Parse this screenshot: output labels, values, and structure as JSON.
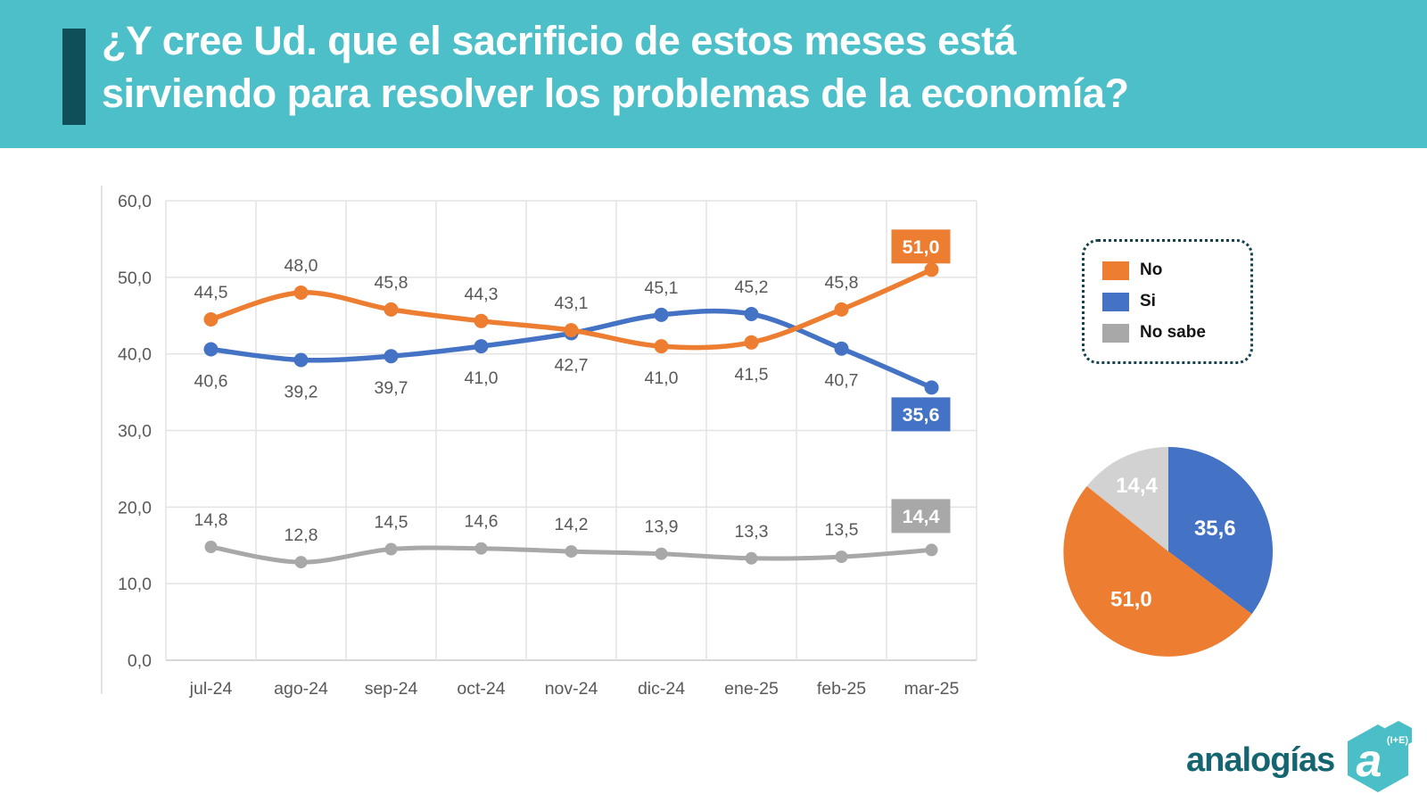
{
  "header": {
    "title_line1": "¿Y cree Ud. que el sacrificio de estos meses está",
    "title_line2": "sirviendo para resolver los problemas de la economía?"
  },
  "colors": {
    "header_bg": "#4CBFC8",
    "header_accent": "#0F4F59",
    "no_orange": "#ED7D31",
    "si_blue": "#4472C4",
    "no_sabe_gray": "#A8A8A8",
    "pie_gray": "#D2D2D2",
    "label_text": "#595959",
    "grid": "#E3E3E3"
  },
  "legend": {
    "items": [
      {
        "label": "No",
        "color": "#ED7D31"
      },
      {
        "label": "Si",
        "color": "#4472C4"
      },
      {
        "label": "No sabe",
        "color": "#A8A8A8"
      }
    ]
  },
  "chart_data": [
    {
      "type": "line",
      "categories": [
        "jul-24",
        "ago-24",
        "sep-24",
        "oct-24",
        "nov-24",
        "dic-24",
        "ene-25",
        "feb-25",
        "mar-25"
      ],
      "series": [
        {
          "name": "No",
          "color": "#ED7D31",
          "values": [
            44.5,
            48.0,
            45.8,
            44.3,
            43.1,
            41.0,
            41.5,
            45.8,
            51.0
          ],
          "label_positions": [
            "above",
            "above",
            "above",
            "above",
            "above",
            "below",
            "below",
            "above",
            "box"
          ]
        },
        {
          "name": "Si",
          "color": "#4472C4",
          "values": [
            40.6,
            39.2,
            39.7,
            41.0,
            42.7,
            45.1,
            45.2,
            40.7,
            35.6
          ],
          "label_positions": [
            "below",
            "below",
            "below",
            "below",
            "below",
            "above",
            "above",
            "below",
            "box"
          ]
        },
        {
          "name": "No sabe",
          "color": "#A8A8A8",
          "values": [
            14.8,
            12.8,
            14.5,
            14.6,
            14.2,
            13.9,
            13.3,
            13.5,
            14.4
          ],
          "label_positions": [
            "above",
            "above",
            "above",
            "above",
            "above",
            "above",
            "above",
            "above",
            "box"
          ]
        }
      ],
      "ylim": [
        0,
        60
      ],
      "ytick_step": 10,
      "yticks": [
        "0,0",
        "10,0",
        "20,0",
        "30,0",
        "40,0",
        "50,0",
        "60,0"
      ],
      "decimal_separator": ",",
      "grid": true,
      "legend_position": "right"
    },
    {
      "type": "pie",
      "slices": [
        {
          "label": "Si",
          "value": 35.6,
          "color": "#4472C4"
        },
        {
          "label": "No",
          "value": 51.0,
          "color": "#ED7D31"
        },
        {
          "label": "No sabe",
          "value": 14.4,
          "color": "#D2D2D2"
        }
      ],
      "start_angle_deg": 0,
      "direction": "clockwise",
      "labels_inside": true
    }
  ],
  "logo": {
    "text": "analogías",
    "badge_letter": "a",
    "badge_superscript": "(I+E)"
  }
}
